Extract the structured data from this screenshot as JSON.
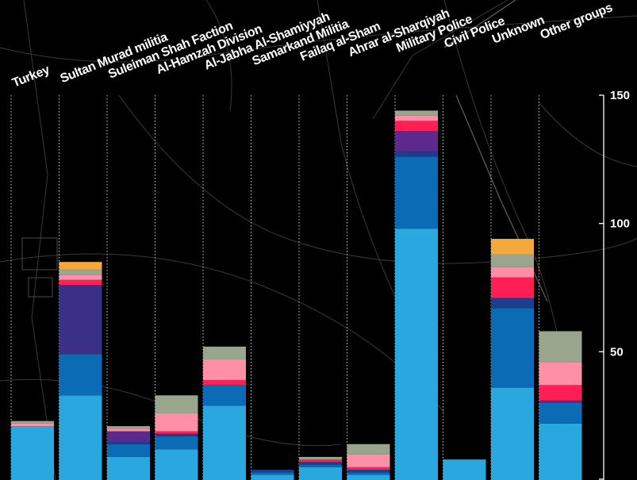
{
  "chart_data": {
    "type": "bar",
    "stacked": true,
    "categories": [
      "Turkey",
      "Sultan Murad militia",
      "Suleiman Shah Faction",
      "Al-Hamzah Division",
      "Al-Jabha Al-Shamiyyah",
      "Samarkand Militia",
      "Failaq al-Sham",
      "Ahrar al-Sharqiyah",
      "Military Police",
      "Civil Police",
      "Unknown",
      "Other groups"
    ],
    "ylim": [
      0,
      150
    ],
    "yticks": [
      50,
      100,
      150
    ],
    "grid": false,
    "legend": "none",
    "segment_colors": [
      "#29a8e0",
      "#0b6bb5",
      "#1b3f8f",
      "#3b3088",
      "#5c2a8c",
      "#ff1e56",
      "#ff8fa6",
      "#9aa58d",
      "#f6a93b"
    ],
    "stacks": [
      [
        21,
        0,
        0,
        0,
        0,
        0,
        1,
        1,
        0
      ],
      [
        33,
        16,
        0,
        27,
        0,
        2,
        2,
        2,
        3
      ],
      [
        9,
        5,
        1,
        0,
        4,
        0,
        1,
        1,
        0
      ],
      [
        12,
        5,
        1,
        0,
        0,
        1,
        7,
        7,
        0
      ],
      [
        29,
        8,
        0,
        0,
        0,
        2,
        8,
        5,
        0
      ],
      [
        2,
        1,
        1,
        0,
        0,
        0,
        0,
        0,
        0
      ],
      [
        5,
        1,
        1,
        0,
        0,
        1,
        0,
        1,
        0
      ],
      [
        2,
        1,
        1,
        0,
        0,
        1,
        5,
        4,
        0
      ],
      [
        98,
        28,
        2,
        0,
        8,
        4,
        2,
        2,
        0
      ],
      [
        8,
        0,
        0,
        0,
        0,
        0,
        0,
        0,
        0
      ],
      [
        36,
        31,
        4,
        0,
        0,
        8,
        4,
        5,
        6
      ],
      [
        22,
        8,
        0,
        0,
        1,
        6,
        9,
        12,
        0
      ]
    ]
  }
}
